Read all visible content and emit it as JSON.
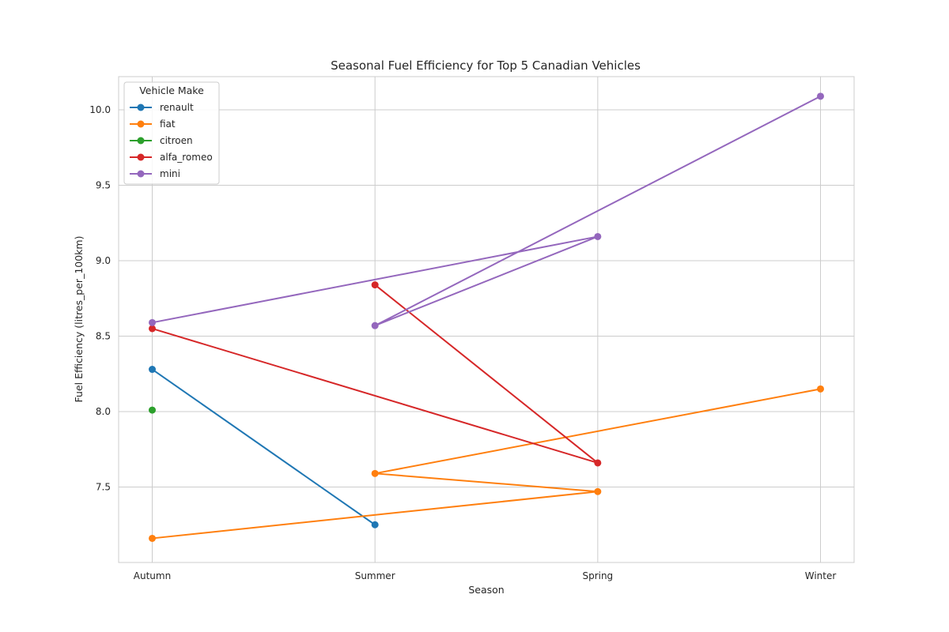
{
  "chart_data": {
    "type": "line",
    "title": "Seasonal Fuel Efficiency for Top 5 Canadian Vehicles",
    "xlabel": "Season",
    "ylabel": "Fuel Efficiency (litres_per_100km)",
    "categories": [
      "Autumn",
      "Summer",
      "Spring",
      "Winter"
    ],
    "ylim": [
      7.0,
      10.22
    ],
    "yticks": [
      "7.5",
      "8.0",
      "8.5",
      "9.0",
      "9.5",
      "10.0"
    ],
    "grid": true,
    "legend": {
      "title": "Vehicle Make",
      "placement": "top-left"
    },
    "series": [
      {
        "name": "renault",
        "color": "#1f77b4",
        "points": [
          {
            "x": "Autumn",
            "y": 8.28
          },
          {
            "x": "Summer",
            "y": 7.25
          }
        ]
      },
      {
        "name": "fiat",
        "color": "#ff7f0e",
        "points": [
          {
            "x": "Autumn",
            "y": 7.16
          },
          {
            "x": "Spring",
            "y": 7.47
          },
          {
            "x": "Summer",
            "y": 7.59
          },
          {
            "x": "Winter",
            "y": 8.15
          }
        ]
      },
      {
        "name": "citroen",
        "color": "#2ca02c",
        "points": [
          {
            "x": "Autumn",
            "y": 8.01
          }
        ]
      },
      {
        "name": "alfa_romeo",
        "color": "#d62728",
        "points": [
          {
            "x": "Autumn",
            "y": 8.55
          },
          {
            "x": "Spring",
            "y": 7.66
          },
          {
            "x": "Summer",
            "y": 8.84
          }
        ]
      },
      {
        "name": "mini",
        "color": "#9467bd",
        "points": [
          {
            "x": "Autumn",
            "y": 8.59
          },
          {
            "x": "Spring",
            "y": 9.16
          },
          {
            "x": "Summer",
            "y": 8.57
          },
          {
            "x": "Winter",
            "y": 10.09
          }
        ]
      }
    ]
  }
}
